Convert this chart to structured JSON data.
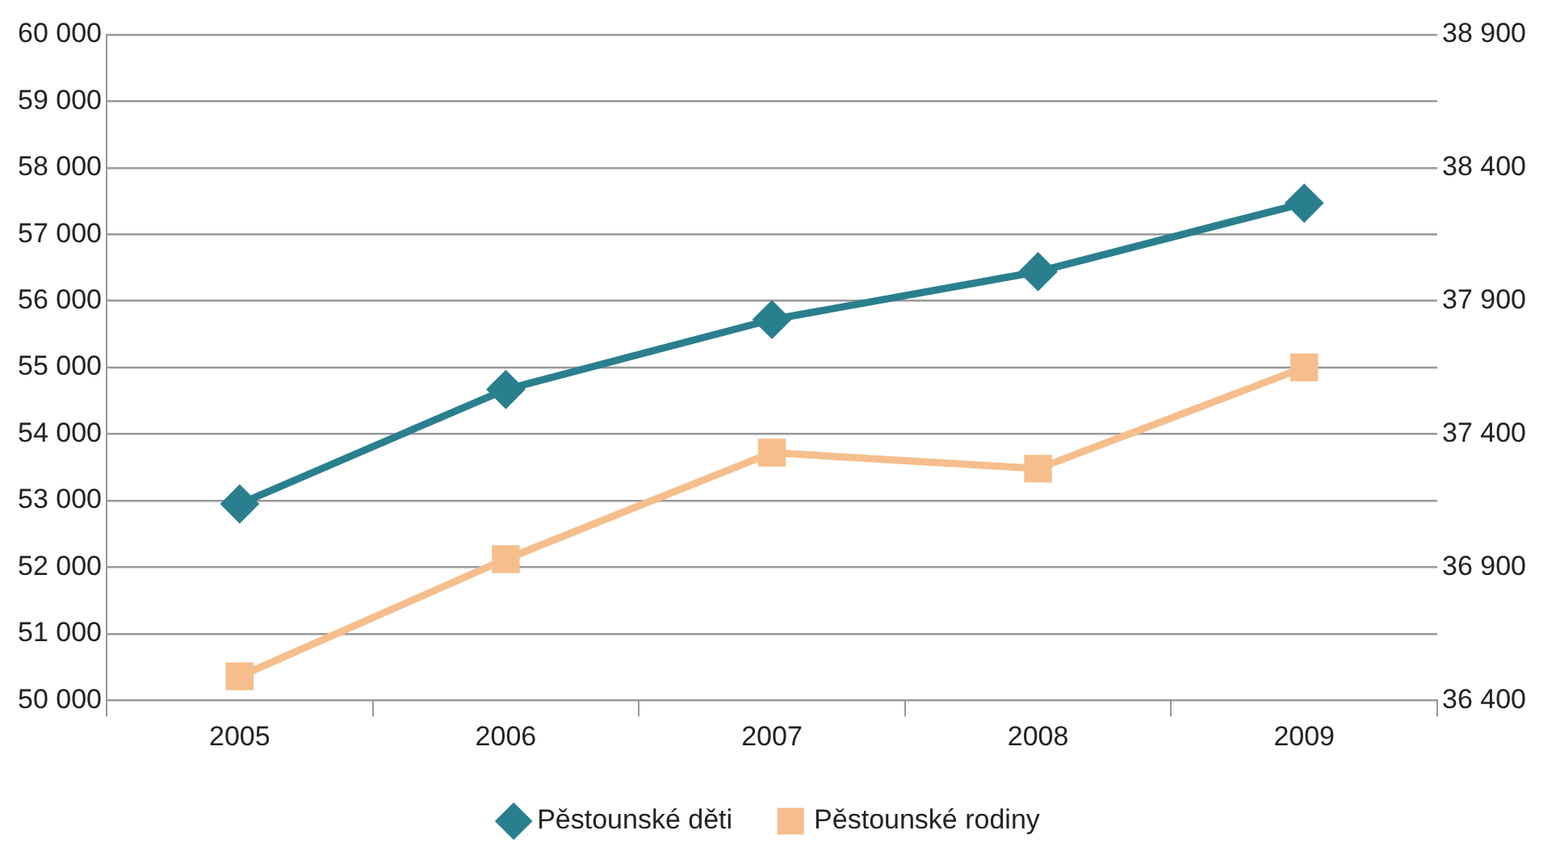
{
  "chart_data": {
    "type": "line",
    "categories": [
      "2005",
      "2006",
      "2007",
      "2008",
      "2009"
    ],
    "series": [
      {
        "name": "Pěstounské děti",
        "color": "#2a7f8e",
        "marker": "diamond",
        "values": [
          52950,
          54670,
          55720,
          56440,
          57470
        ]
      },
      {
        "name": "Pěstounské rodiny",
        "color": "#f5be8c",
        "marker": "square",
        "axis": "y2",
        "values": [
          36490,
          36930,
          37330,
          37270,
          37650
        ]
      }
    ],
    "ylim": [
      50000,
      60000
    ],
    "yticks": [
      {
        "value": 50000,
        "label": "50 000"
      },
      {
        "value": 51000,
        "label": "51 000"
      },
      {
        "value": 52000,
        "label": "52 000"
      },
      {
        "value": 53000,
        "label": "53 000"
      },
      {
        "value": 54000,
        "label": "54 000"
      },
      {
        "value": 55000,
        "label": "55 000"
      },
      {
        "value": 56000,
        "label": "56 000"
      },
      {
        "value": 57000,
        "label": "57 000"
      },
      {
        "value": 58000,
        "label": "58 000"
      },
      {
        "value": 59000,
        "label": "59 000"
      },
      {
        "value": 60000,
        "label": "60 000"
      }
    ],
    "y2lim": [
      36400,
      38900
    ],
    "y2ticks": [
      {
        "value": 36400,
        "label": "36 400"
      },
      {
        "value": 36900,
        "label": "36 900"
      },
      {
        "value": 37400,
        "label": "37 400"
      },
      {
        "value": 37900,
        "label": "37 900"
      },
      {
        "value": 38400,
        "label": "38 400"
      },
      {
        "value": 38900,
        "label": "38 900"
      }
    ],
    "grid": "y",
    "legend": "bottom",
    "line_style": "solid"
  }
}
